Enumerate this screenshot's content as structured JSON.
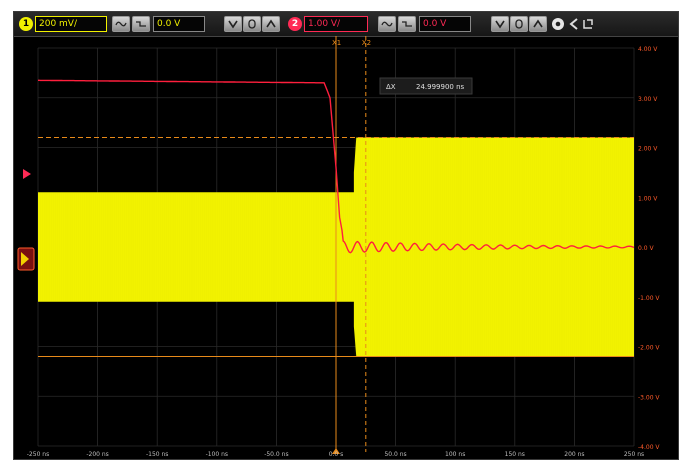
{
  "toolbar": {
    "ch1": {
      "number": "1",
      "scale": "200 mV/",
      "offset": "0.0 V",
      "color": "#f2f200"
    },
    "ch2": {
      "number": "2",
      "scale": "1.00 V/",
      "offset": "0.0 V",
      "color": "#ff2a55"
    },
    "icons": [
      "ac-coupling-icon",
      "dc-coupling-icon",
      "invert-icon",
      "bandwidth-limit-icon",
      "up-icon",
      "settings-icon",
      "back-icon",
      "menu-icon"
    ]
  },
  "cursor_readout": {
    "label": "ΔX",
    "value": "24.999900 ns"
  },
  "cursors": {
    "x1_label": "X1",
    "x2_label": "X2",
    "x1_time_ns": 0,
    "x2_time_ns": 25
  },
  "y_tick_labels": [
    "4.00 V",
    "3.00 V",
    "2.00 V",
    "1.00 V",
    "0.0 V",
    "-1.00 V",
    "-2.00 V",
    "-3.00 V",
    "-4.00 V"
  ],
  "x_tick_labels": [
    "-250 ns",
    "-200 ns",
    "-150 ns",
    "-100 ns",
    "-50.0 ns",
    "0.0 s",
    "50.0 ns",
    "100 ns",
    "150 ns",
    "200 ns",
    "250 ns"
  ],
  "colors": {
    "ch1": "#f2f200",
    "ch2": "#ff1f3d",
    "cursor": "#e88a1a",
    "grid": "#2a2a2a",
    "tick_text": "#ff5a2a"
  },
  "chart_data": {
    "type": "line",
    "x_unit": "ns",
    "y_unit": "V",
    "xlim": [
      -250,
      250
    ],
    "ylim": [
      -4,
      4
    ],
    "grid": true,
    "series": [
      {
        "channel": "1",
        "envelope_x": [
          -250,
          15,
          15,
          17,
          250
        ],
        "envelope_upper": [
          1.1,
          1.1,
          1.5,
          2.2,
          2.2
        ],
        "envelope_lower": [
          -1.1,
          -1.1,
          -1.6,
          -2.2,
          -2.2
        ]
      },
      {
        "channel": "2",
        "x": [
          -250,
          -10,
          -5,
          0,
          3,
          6,
          10,
          15,
          20,
          30,
          40,
          60,
          80,
          120,
          250
        ],
        "y": [
          3.35,
          3.3,
          3.0,
          1.6,
          0.6,
          0.2,
          0.05,
          -0.1,
          0.05,
          -0.05,
          0.04,
          -0.03,
          0.02,
          0.0,
          0.0
        ]
      }
    ]
  }
}
